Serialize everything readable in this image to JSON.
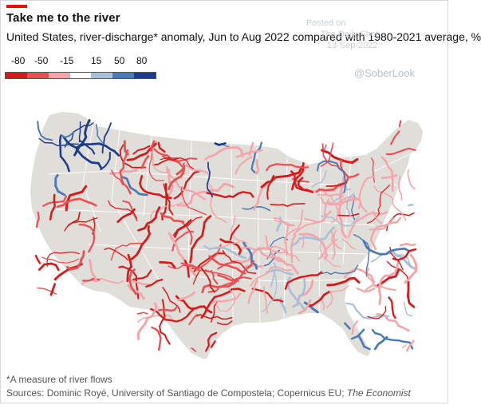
{
  "title": "Take me to the river",
  "subtitle": "United States, river-discharge* anomaly, Jun to Aug 2022 compared with 1980-2021 average, %",
  "legend": {
    "ticks": [
      "-80",
      "-50",
      "-15",
      "15",
      "50",
      "80"
    ],
    "colors": [
      "#d7191c",
      "#ea4d52",
      "#f4a5a9",
      "#ffffff",
      "#a9bfd8",
      "#4a79b3",
      "#1d3b8a"
    ]
  },
  "watermark": {
    "line1": "Posted on",
    "line2": "The Daily Shot",
    "line3": "13-Sep-2022",
    "handle": "@SoberLook"
  },
  "footnote": "*A measure of river flows",
  "sources": {
    "prefix": "Sources: Dominic Royé, University of Santiago de Compostela; Copernicus EU; ",
    "italic": "The Economist"
  },
  "map": {
    "land_color": "#e0ded8",
    "border_color": "#ffffff"
  }
}
